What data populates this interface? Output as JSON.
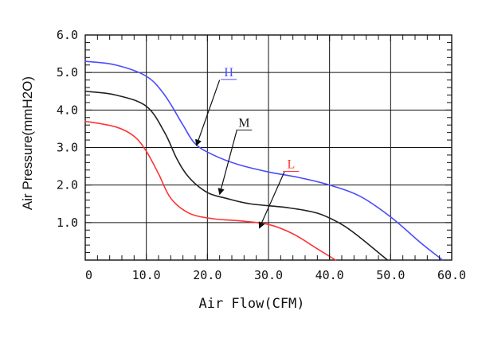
{
  "chart_data": {
    "type": "line",
    "title": "",
    "xlabel": "Air Flow(CFM)",
    "ylabel": "Air Pressure(mmH2O)",
    "xlim": [
      0,
      60
    ],
    "ylim": [
      0,
      6
    ],
    "x_ticks": [
      "0",
      "10.0",
      "20.0",
      "30.0",
      "40.0",
      "50.0",
      "60.0"
    ],
    "y_ticks": [
      "1.0",
      "2.0",
      "3.0",
      "4.0",
      "5.0",
      "6.0"
    ],
    "grid": true,
    "legend": "inline labels with arrows",
    "series": [
      {
        "name": "H",
        "color": "#4b4bff",
        "points": [
          [
            0,
            5.3
          ],
          [
            5,
            5.2
          ],
          [
            10,
            4.9
          ],
          [
            13,
            4.4
          ],
          [
            16,
            3.6
          ],
          [
            18,
            3.1
          ],
          [
            21,
            2.8
          ],
          [
            25,
            2.55
          ],
          [
            30,
            2.35
          ],
          [
            35,
            2.2
          ],
          [
            40,
            2.0
          ],
          [
            45,
            1.7
          ],
          [
            50,
            1.15
          ],
          [
            55,
            0.45
          ],
          [
            58.5,
            0.0
          ]
        ]
      },
      {
        "name": "M",
        "color": "#202020",
        "points": [
          [
            0,
            4.5
          ],
          [
            5,
            4.4
          ],
          [
            10,
            4.1
          ],
          [
            13,
            3.4
          ],
          [
            15,
            2.7
          ],
          [
            17,
            2.2
          ],
          [
            20,
            1.8
          ],
          [
            23,
            1.65
          ],
          [
            27,
            1.5
          ],
          [
            33,
            1.4
          ],
          [
            38,
            1.25
          ],
          [
            42,
            0.95
          ],
          [
            45,
            0.6
          ],
          [
            48,
            0.2
          ],
          [
            49.5,
            0.0
          ]
        ]
      },
      {
        "name": "L",
        "color": "#ff3333",
        "points": [
          [
            0,
            3.7
          ],
          [
            5,
            3.55
          ],
          [
            8,
            3.3
          ],
          [
            10,
            2.9
          ],
          [
            12,
            2.3
          ],
          [
            14,
            1.65
          ],
          [
            17,
            1.25
          ],
          [
            21,
            1.1
          ],
          [
            25,
            1.05
          ],
          [
            30,
            0.95
          ],
          [
            34,
            0.7
          ],
          [
            38,
            0.3
          ],
          [
            41,
            0.0
          ]
        ]
      }
    ],
    "annotations": [
      {
        "text": "H",
        "color": "#4b4bff",
        "label_xy": [
          23.5,
          4.9
        ],
        "arrow_from": [
          22.0,
          4.8
        ],
        "arrow_to": [
          18.2,
          3.05
        ]
      },
      {
        "text": "M",
        "color": "#202020",
        "label_xy": [
          26.0,
          3.55
        ],
        "arrow_from": [
          24.8,
          3.45
        ],
        "arrow_to": [
          22.0,
          1.75
        ]
      },
      {
        "text": "L",
        "color": "#ff3333",
        "label_xy": [
          33.7,
          2.45
        ],
        "arrow_from": [
          32.6,
          2.35
        ],
        "arrow_to": [
          28.5,
          0.85
        ]
      }
    ]
  }
}
